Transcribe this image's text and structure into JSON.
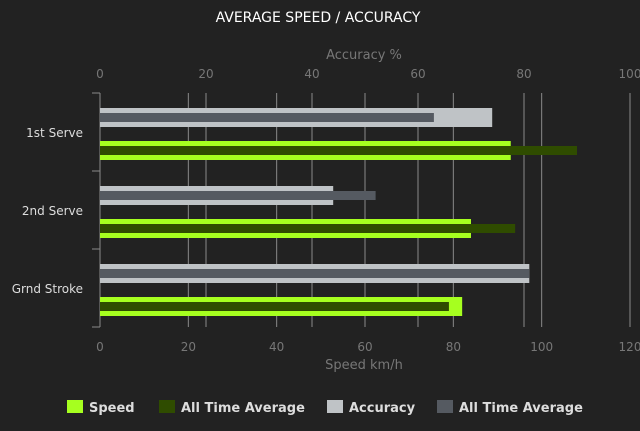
{
  "chart_data": {
    "type": "bar",
    "orientation": "horizontal",
    "title": "AVERAGE SPEED / ACCURACY",
    "categories": [
      "1st Serve",
      "2nd Serve",
      "Grnd Stroke"
    ],
    "x_top": {
      "label": "Accuracy %",
      "range": [
        0,
        100
      ],
      "ticks": [
        0,
        20,
        40,
        60,
        80,
        100
      ]
    },
    "x_bottom": {
      "label": "Speed km/h",
      "range": [
        0,
        120
      ],
      "ticks": [
        0,
        20,
        40,
        60,
        80,
        100,
        120
      ]
    },
    "grid": true,
    "legend_position": "bottom",
    "series": [
      {
        "name": "Speed",
        "axis": "speed",
        "color": "#a6ff1f",
        "values": [
          93,
          84,
          82
        ]
      },
      {
        "name": "All Time Average",
        "axis": "speed",
        "color": "#2f4c00",
        "values": [
          108,
          94,
          79
        ]
      },
      {
        "name": "Accuracy",
        "axis": "accuracy",
        "color": "#bfc3c6",
        "values": [
          74,
          44,
          81
        ]
      },
      {
        "name": "All Time Average",
        "axis": "accuracy",
        "color": "#555a61",
        "values": [
          63,
          52,
          81
        ]
      }
    ]
  }
}
